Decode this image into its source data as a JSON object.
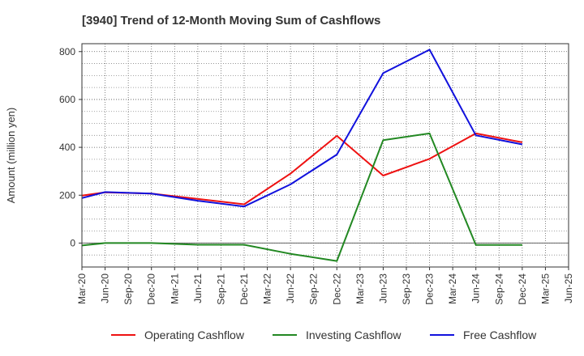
{
  "chart_data": {
    "type": "line",
    "title": "[3940]  Trend of 12-Month Moving Sum of Cashflows",
    "ylabel": "Amount (million yen)",
    "xlabel": "",
    "ylim": [
      -100,
      833
    ],
    "yticks": [
      0,
      200,
      400,
      600,
      800
    ],
    "grid": true,
    "legend_position": "bottom",
    "categories": [
      "Mar-20",
      "Jun-20",
      "Sep-20",
      "Dec-20",
      "Mar-21",
      "Jun-21",
      "Sep-21",
      "Dec-21",
      "Mar-22",
      "Jun-22",
      "Sep-22",
      "Dec-22",
      "Mar-23",
      "Jun-23",
      "Sep-23",
      "Dec-23",
      "Mar-24",
      "Jun-24",
      "Sep-24",
      "Dec-24",
      "Mar-25",
      "Jun-25"
    ],
    "series": [
      {
        "name": "Operating Cashflow",
        "color": "#ee1111",
        "values": [
          198,
          212,
          null,
          207,
          null,
          null,
          null,
          162,
          null,
          290,
          null,
          448,
          null,
          282,
          null,
          352,
          null,
          458,
          null,
          421,
          null,
          null
        ]
      },
      {
        "name": "Investing Cashflow",
        "color": "#228822",
        "values": [
          -10,
          0,
          null,
          0,
          null,
          -7,
          null,
          -7,
          null,
          -45,
          null,
          -75,
          null,
          430,
          null,
          458,
          null,
          -8,
          null,
          -8,
          null,
          null
        ]
      },
      {
        "name": "Free Cashflow",
        "color": "#1111dd",
        "values": [
          188,
          213,
          null,
          207,
          null,
          177,
          null,
          153,
          null,
          245,
          null,
          370,
          null,
          710,
          null,
          808,
          null,
          450,
          null,
          412,
          null,
          null
        ]
      }
    ]
  }
}
